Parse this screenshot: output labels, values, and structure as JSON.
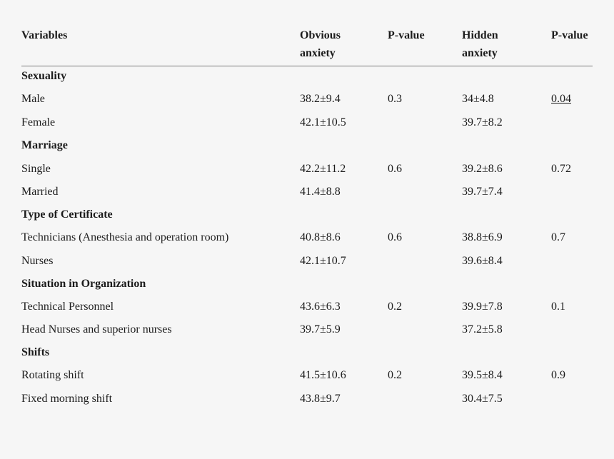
{
  "headers": {
    "variables": "Variables",
    "obvious_line1": "Obvious",
    "obvious_line2": "anxiety",
    "pvalue1": "P-value",
    "hidden_line1": "Hidden",
    "hidden_line2": "anxiety",
    "pvalue2": "P-value"
  },
  "sections": [
    {
      "title": "Sexuality",
      "rows": [
        {
          "label": "Male",
          "obvious": "38.2±9.4",
          "p1": "0.3",
          "hidden": "34±4.8",
          "p2": "0.04"
        },
        {
          "label": "Female",
          "obvious": "42.1±10.5",
          "p1": "",
          "hidden": "39.7±8.2",
          "p2": ""
        }
      ]
    },
    {
      "title": "Marriage",
      "rows": [
        {
          "label": "Single",
          "obvious": "42.2±11.2",
          "p1": "0.6",
          "hidden": "39.2±8.6",
          "p2": "0.72"
        },
        {
          "label": "Married",
          "obvious": "41.4±8.8",
          "p1": "",
          "hidden": "39.7±7.4",
          "p2": ""
        }
      ]
    },
    {
      "title": "Type of Certificate",
      "rows": [
        {
          "label": "Technicians (Anesthesia and operation room)",
          "obvious": "40.8±8.6",
          "p1": "0.6",
          "hidden": "38.8±6.9",
          "p2": "0.7"
        },
        {
          "label": "Nurses",
          "obvious": "42.1±10.7",
          "p1": "",
          "hidden": "39.6±8.4",
          "p2": ""
        }
      ]
    },
    {
      "title": "Situation in Organization",
      "rows": [
        {
          "label": "Technical Personnel",
          "obvious": "43.6±6.3",
          "p1": "0.2",
          "hidden": "39.9±7.8",
          "p2": "0.1"
        },
        {
          "label": "Head Nurses and superior nurses",
          "obvious": "39.7±5.9",
          "p1": "",
          "hidden": "37.2±5.8",
          "p2": ""
        }
      ]
    },
    {
      "title": "Shifts",
      "rows": [
        {
          "label": "Rotating shift",
          "obvious": "41.5±10.6",
          "p1": "0.2",
          "hidden": "39.5±8.4",
          "p2": "0.9"
        },
        {
          "label": "Fixed morning shift",
          "obvious": "43.8±9.7",
          "p1": "",
          "hidden": "30.4±7.5",
          "p2": ""
        }
      ]
    }
  ]
}
